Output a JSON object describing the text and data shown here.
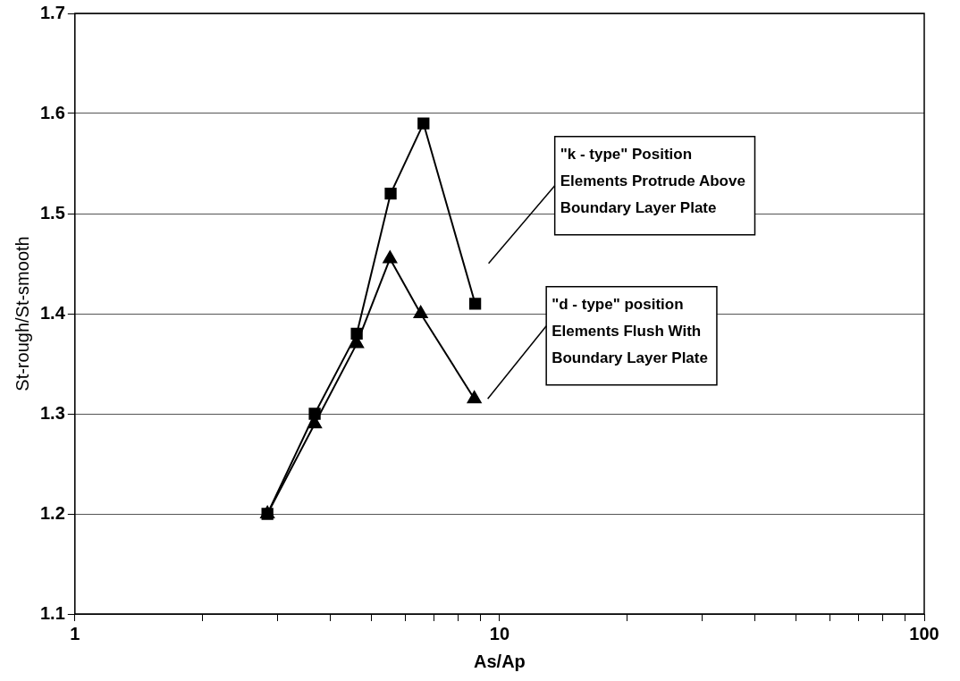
{
  "chart_data": {
    "type": "line",
    "xlabel": "As/Ap",
    "ylabel": "St-rough/St-smooth",
    "log": "x",
    "xlim": [
      1,
      100
    ],
    "xticks": [
      1,
      {
        "value": 2,
        "label": null
      },
      {
        "value": 3,
        "label": null
      },
      {
        "value": 4,
        "label": null
      },
      {
        "value": 5,
        "label": null
      },
      {
        "value": 6,
        "label": null
      },
      {
        "value": 7,
        "label": null
      },
      {
        "value": 8,
        "label": null
      },
      {
        "value": 9,
        "label": null
      },
      10,
      {
        "value": 20,
        "label": null
      },
      {
        "value": 30,
        "label": null
      },
      {
        "value": 40,
        "label": null
      },
      {
        "value": 50,
        "label": null
      },
      {
        "value": 60,
        "label": null
      },
      {
        "value": 70,
        "label": null
      },
      {
        "value": 80,
        "label": null
      },
      {
        "value": 90,
        "label": null
      },
      100
    ],
    "ylim": [
      1.1,
      1.7
    ],
    "yticks": [
      1.1,
      1.2,
      1.3,
      1.4,
      1.5,
      1.6,
      1.7
    ],
    "grid": "y",
    "legend": false,
    "line_style": "solid",
    "series": [
      {
        "color": "#000000",
        "marker": "triangle",
        "x": [
          2.84,
          3.67,
          4.61,
          5.52,
          6.52,
          8.72
        ],
        "values": [
          1.2,
          1.29,
          1.37,
          1.455,
          1.4,
          1.315
        ]
      },
      {
        "color": "#000000",
        "marker": "square",
        "x": [
          2.84,
          3.67,
          4.61,
          5.54,
          6.62,
          8.76
        ],
        "values": [
          1.2,
          1.3,
          1.38,
          1.52,
          1.59,
          1.41
        ]
      }
    ],
    "annotations": [
      "\"k - type\" Position\nElements Protrude Above\nBoundary Layer Plate",
      "\"d - type\" position\nElements Flush With\nBoundary Layer Plate"
    ]
  }
}
